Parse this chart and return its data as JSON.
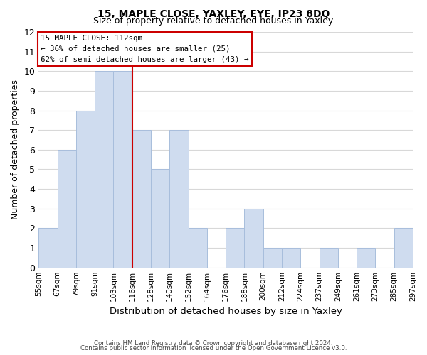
{
  "title1": "15, MAPLE CLOSE, YAXLEY, EYE, IP23 8DQ",
  "title2": "Size of property relative to detached houses in Yaxley",
  "xlabel": "Distribution of detached houses by size in Yaxley",
  "ylabel": "Number of detached properties",
  "footer1": "Contains HM Land Registry data © Crown copyright and database right 2024.",
  "footer2": "Contains public sector information licensed under the Open Government Licence v3.0.",
  "bin_labels": [
    "55sqm",
    "67sqm",
    "79sqm",
    "91sqm",
    "103sqm",
    "116sqm",
    "128sqm",
    "140sqm",
    "152sqm",
    "164sqm",
    "176sqm",
    "188sqm",
    "200sqm",
    "212sqm",
    "224sqm",
    "237sqm",
    "249sqm",
    "261sqm",
    "273sqm",
    "285sqm",
    "297sqm"
  ],
  "bar_heights": [
    2,
    6,
    8,
    10,
    10,
    7,
    5,
    7,
    2,
    0,
    2,
    3,
    1,
    1,
    0,
    1,
    0,
    1,
    0,
    2
  ],
  "bar_color": "#cfdcef",
  "bar_edge_color": "#a8bedc",
  "vline_color": "#cc0000",
  "vline_x": 4.5,
  "ylim": [
    0,
    12
  ],
  "yticks": [
    0,
    1,
    2,
    3,
    4,
    5,
    6,
    7,
    8,
    9,
    10,
    11,
    12
  ],
  "annotation_title": "15 MAPLE CLOSE: 112sqm",
  "annotation_line1": "← 36% of detached houses are smaller (25)",
  "annotation_line2": "62% of semi-detached houses are larger (43) →",
  "annotation_box_facecolor": "#ffffff",
  "annotation_box_edgecolor": "#cc0000",
  "grid_color": "#d8d8d8",
  "background_color": "#ffffff"
}
